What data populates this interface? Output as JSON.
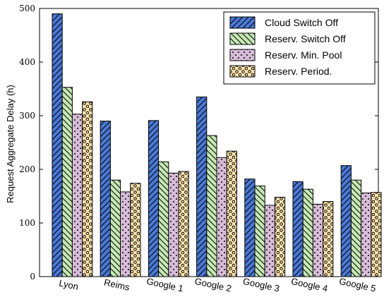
{
  "chart_data": {
    "type": "bar",
    "categories": [
      "Lyon",
      "Reims",
      "Google 1",
      "Google 2",
      "Google 3",
      "Google 4",
      "Google 5"
    ],
    "ylabel": "Request Aggregate Delay (h)",
    "xlabel": "",
    "ylim": [
      0,
      500
    ],
    "yticks": [
      0,
      100,
      200,
      300,
      400,
      500
    ],
    "grid": false,
    "legend_position": "top-right",
    "series": [
      {
        "name": "Cloud Switch Off",
        "color": "#4a78d4",
        "pattern": "diagonal-forward",
        "values": [
          490,
          290,
          291,
          335,
          182,
          177,
          207
        ]
      },
      {
        "name": "Reserv. Switch Off",
        "color": "#c6e8b4",
        "pattern": "diagonal-back",
        "values": [
          353,
          180,
          214,
          263,
          169,
          163,
          180
        ]
      },
      {
        "name": "Reserv. Min. Pool",
        "color": "#d7bcd8",
        "pattern": "small-dots",
        "values": [
          303,
          158,
          193,
          222,
          133,
          135,
          156
        ]
      },
      {
        "name": "Reserv. Period.",
        "color": "#fde4ad",
        "pattern": "circles",
        "values": [
          326,
          174,
          196,
          234,
          148,
          140,
          157
        ]
      }
    ]
  }
}
